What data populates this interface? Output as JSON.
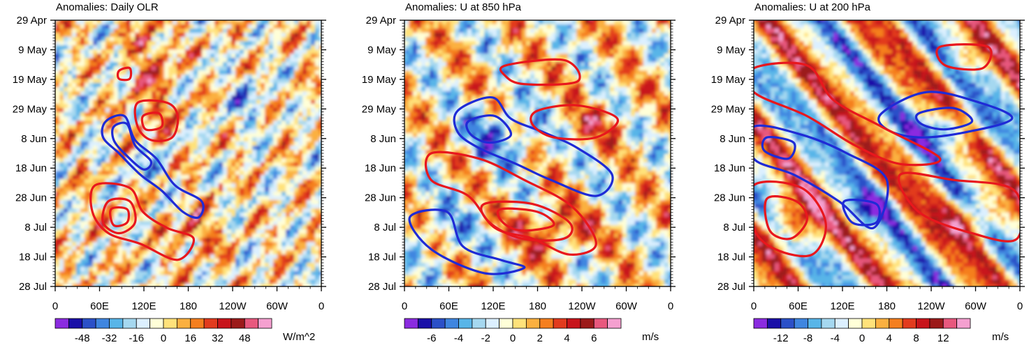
{
  "chart_data": {
    "type": "heatmap",
    "shared": {
      "y_tick_labels": [
        "29 Apr",
        "9 May",
        "19 May",
        "29 May",
        "8 Jun",
        "18 Jun",
        "28 Jun",
        "8 Jul",
        "18 Jul",
        "28 Jul"
      ],
      "x_tick_labels": [
        "0",
        "60E",
        "120E",
        "180",
        "120W",
        "60W",
        "0"
      ],
      "x_range_deg_east": [
        0,
        360
      ],
      "y_range": [
        "29 Apr",
        "28 Jul"
      ],
      "palette": [
        "#8b2be0",
        "#1a0fa8",
        "#2b50c8",
        "#3f86e0",
        "#58b5e8",
        "#a5d8f0",
        "#dcf0ff",
        "#ffffd8",
        "#ffe27a",
        "#fbb040",
        "#f57f1f",
        "#e23b1e",
        "#c8141b",
        "#9c1a1a",
        "#e8587e",
        "#f5a0d0"
      ],
      "contour_colors": {
        "positive": "#e8171d",
        "negative": "#1f2bd6"
      }
    },
    "panels": [
      {
        "id": "olr",
        "title": "Anomalies: Daily OLR",
        "units": "W/m^2",
        "colorbar_labels": [
          "-48",
          "-32",
          "-16",
          "0",
          "16",
          "32",
          "48"
        ],
        "value_range": [
          -64,
          64
        ]
      },
      {
        "id": "u850",
        "title": "Anomalies: U at 850 hPa",
        "units": "m/s",
        "colorbar_labels": [
          "-6",
          "-4",
          "-2",
          "0",
          "2",
          "4",
          "6"
        ],
        "value_range": [
          -8,
          8
        ]
      },
      {
        "id": "u200",
        "title": "Anomalies: U at 200 hPa",
        "units": "m/s",
        "colorbar_labels": [
          "-12",
          "-8",
          "-4",
          "0",
          "4",
          "8",
          "12"
        ],
        "value_range": [
          -16,
          16
        ]
      }
    ]
  }
}
